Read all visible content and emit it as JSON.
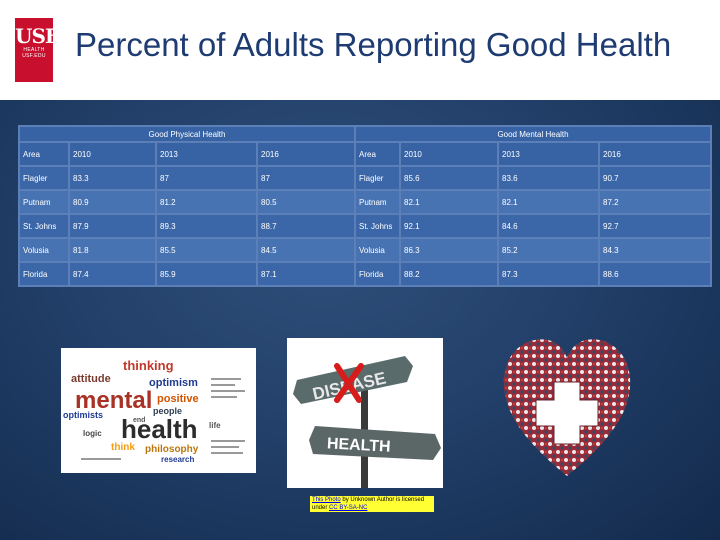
{
  "slide": {
    "title": "Percent of Adults Reporting Good Health",
    "logo": {
      "mark": "USF",
      "line1": "HEALTH",
      "line2": "USF.EDU"
    }
  },
  "table": {
    "group_headers": [
      "Good Physical Health",
      "Good Mental Health"
    ],
    "columns": [
      "Area",
      "2010",
      "2013",
      "2016",
      "Area",
      "2010",
      "2013",
      "2016"
    ],
    "rows": [
      [
        "Flagler",
        "83.3",
        "87",
        "87",
        "Flagler",
        "85.6",
        "83.6",
        "90.7"
      ],
      [
        "Putnam",
        "80.9",
        "81.2",
        "80.5",
        "Putnam",
        "82.1",
        "82.1",
        "87.2"
      ],
      [
        "St. Johns",
        "87.9",
        "89.3",
        "88.7",
        "St. Johns",
        "92.1",
        "84.6",
        "92.7"
      ],
      [
        "Volusia",
        "81.8",
        "85.5",
        "84.5",
        "Volusia",
        "86.3",
        "85.2",
        "84.3"
      ],
      [
        "Florida",
        "87.4",
        "85.9",
        "87.1",
        "Florida",
        "88.2",
        "87.3",
        "88.6"
      ]
    ]
  },
  "images": {
    "wordcloud_words": [
      "mental",
      "health",
      "thinking",
      "attitude",
      "optimism",
      "positive",
      "people",
      "think",
      "philosophy",
      "research",
      "optimists",
      "life",
      "logic",
      "end"
    ],
    "signpost_words": [
      "DISEASE",
      "HEALTH"
    ]
  },
  "credit": {
    "link_text": "This Photo",
    "text": " by Unknown Author is licensed under ",
    "license": "CC BY-SA-NC"
  },
  "colors": {
    "title": "#1e3c72",
    "logo_red": "#c8102e",
    "table_fill": "#3b67a8",
    "table_border": "#5b7fb6",
    "credit_bg": "#ffff33"
  }
}
